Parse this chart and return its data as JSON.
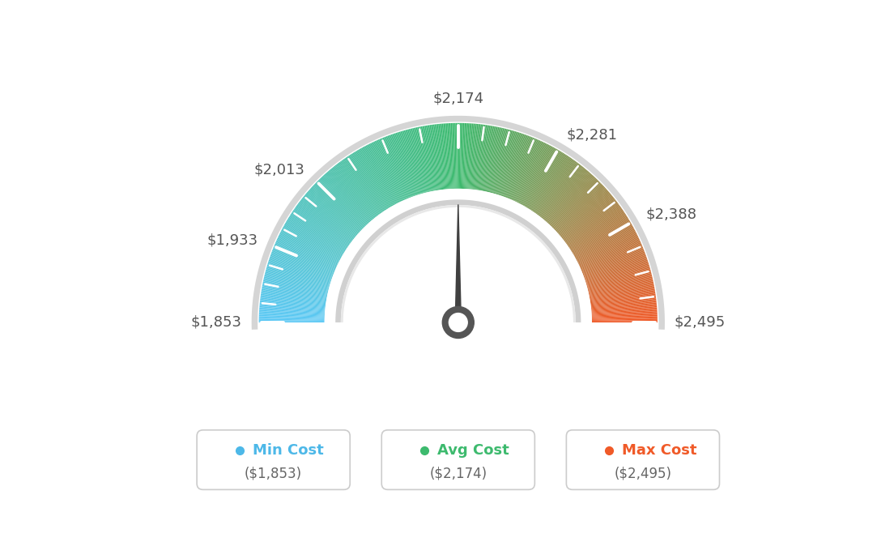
{
  "min_val": 1853,
  "avg_val": 2174,
  "max_val": 2495,
  "tick_labels": [
    "$1,853",
    "$1,933",
    "$2,013",
    "$2,174",
    "$2,281",
    "$2,388",
    "$2,495"
  ],
  "tick_values": [
    1853,
    1933,
    2013,
    2174,
    2281,
    2388,
    2495
  ],
  "legend_items": [
    {
      "label": "Min Cost",
      "value": "($1,853)",
      "color": "#4db8e8"
    },
    {
      "label": "Avg Cost",
      "value": "($2,174)",
      "color": "#3dba6e"
    },
    {
      "label": "Max Cost",
      "value": "($2,495)",
      "color": "#f05a28"
    }
  ],
  "bg_color": "#ffffff",
  "color_stops": [
    [
      0.0,
      [
        91,
        200,
        245
      ]
    ],
    [
      0.5,
      [
        61,
        186,
        110
      ]
    ],
    [
      1.0,
      [
        240,
        90,
        40
      ]
    ]
  ],
  "outer_r": 0.82,
  "inner_r": 0.55,
  "sep_r": 0.585,
  "needle_color": "#404040",
  "needle_base_outer": 0.065,
  "needle_base_inner": 0.038
}
